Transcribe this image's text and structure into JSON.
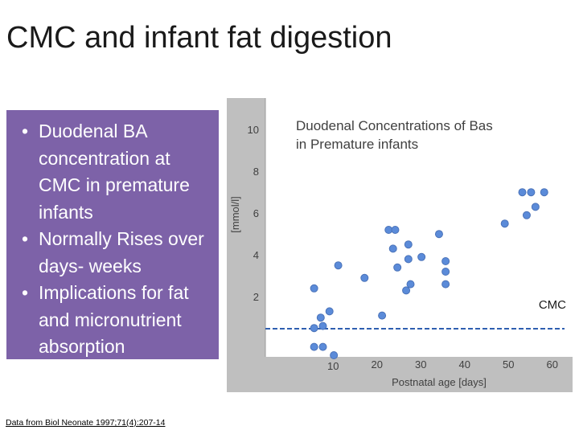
{
  "slide": {
    "title": "CMC and infant fat digestion",
    "bullets": [
      "Duodenal BA concentration at CMC in premature infants",
      "Normally Rises over days- weeks",
      "Implications for fat and micronutrient absorption"
    ],
    "bullet_lines": [
      [
        "Duodenal BA",
        "concentration at",
        "CMC in premature",
        "infants"
      ],
      [
        "Normally Rises over",
        "days- weeks"
      ],
      [
        "Implications for fat",
        "and micronutrient",
        "absorption"
      ]
    ],
    "bullet_symbol": "•",
    "citation": "Data from Biol Neonate 1997;71(4):207-14"
  },
  "colors": {
    "bullet_box": "#7d62a8",
    "plot_bg": "#bfbfbf",
    "point_fill": "#5b8bd9",
    "point_stroke": "#4a72b8",
    "cmc_line": "#2f5fb0",
    "axis_text": "#404040"
  },
  "chart_data": {
    "type": "scatter",
    "title": "Duodenal Concentrations of Bas in Premature infants",
    "xlabel": "Postnatal age [days]",
    "ylabel": "[mmol/l]",
    "xlim": [
      5,
      65
    ],
    "ylim": [
      0,
      12
    ],
    "x_ticks": [
      {
        "value": 10,
        "label": "10"
      },
      {
        "value": 20,
        "label": "20"
      },
      {
        "value": 30,
        "label": "30"
      },
      {
        "value": 40,
        "label": "40"
      },
      {
        "value": 50,
        "label": "50"
      },
      {
        "value": 60,
        "label": "60"
      }
    ],
    "y_ticks": [
      {
        "value": 2,
        "label": "2"
      },
      {
        "value": 4,
        "label": "4"
      },
      {
        "value": 6,
        "label": "6"
      },
      {
        "value": 8,
        "label": "8"
      },
      {
        "value": 10,
        "label": "10"
      }
    ],
    "grid": false,
    "reference_line": {
      "y": 2.0,
      "label": "CMC",
      "style": "dashed"
    },
    "points": [
      {
        "x": 7.5,
        "y": 3.2
      },
      {
        "x": 7.5,
        "y": 1.3
      },
      {
        "x": 7.5,
        "y": 0.4
      },
      {
        "x": 9.0,
        "y": 1.8
      },
      {
        "x": 9.5,
        "y": 1.4
      },
      {
        "x": 9.5,
        "y": 0.4
      },
      {
        "x": 11.0,
        "y": 2.1
      },
      {
        "x": 12.0,
        "y": 0.0
      },
      {
        "x": 13.0,
        "y": 4.3
      },
      {
        "x": 19.0,
        "y": 3.7
      },
      {
        "x": 23.0,
        "y": 1.9
      },
      {
        "x": 24.5,
        "y": 6.0
      },
      {
        "x": 26.0,
        "y": 6.0
      },
      {
        "x": 25.5,
        "y": 5.1
      },
      {
        "x": 26.5,
        "y": 4.2
      },
      {
        "x": 29.0,
        "y": 5.3
      },
      {
        "x": 29.0,
        "y": 4.6
      },
      {
        "x": 28.5,
        "y": 3.1
      },
      {
        "x": 29.5,
        "y": 3.4
      },
      {
        "x": 32.0,
        "y": 4.7
      },
      {
        "x": 36.0,
        "y": 5.8
      },
      {
        "x": 37.5,
        "y": 4.5
      },
      {
        "x": 37.5,
        "y": 4.0
      },
      {
        "x": 37.5,
        "y": 3.4
      },
      {
        "x": 51.0,
        "y": 6.3
      },
      {
        "x": 55.0,
        "y": 7.8
      },
      {
        "x": 57.0,
        "y": 7.8
      },
      {
        "x": 60.0,
        "y": 7.8
      },
      {
        "x": 56.0,
        "y": 6.7
      },
      {
        "x": 58.0,
        "y": 7.1
      }
    ]
  }
}
